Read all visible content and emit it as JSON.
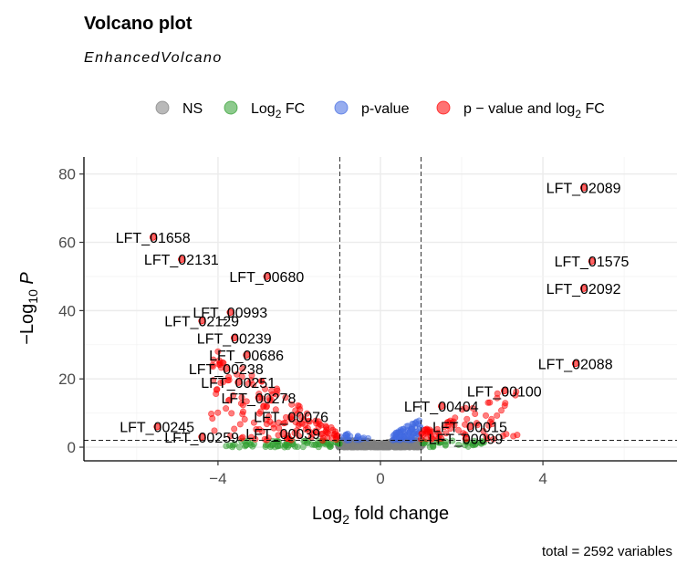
{
  "chart_data": {
    "type": "scatter",
    "title": "Volcano plot",
    "subtitle": "EnhancedVolcano",
    "caption": "total = 2592 variables",
    "xlabel": {
      "prefix": "Log",
      "sub": "2",
      "suffix": " fold change"
    },
    "ylabel": {
      "prefix": "−Log",
      "sub": "10",
      "suffix": " P"
    },
    "xlim": [
      -7.3,
      7.3
    ],
    "ylim": [
      -4,
      85
    ],
    "xticks": [
      -4,
      0,
      4
    ],
    "yticks": [
      0,
      20,
      40,
      60,
      80
    ],
    "grid": true,
    "fc_cutoff": 1,
    "p_cutoff_neglog10": 2,
    "legend": {
      "position": "top",
      "entries": [
        {
          "key": "NS",
          "label": "NS",
          "color": "#7f7f7f"
        },
        {
          "key": "FC",
          "label_prefix": "Log",
          "label_sub": "2",
          "label_suffix": " FC",
          "color": "#2f9e2f"
        },
        {
          "key": "P",
          "label": "p-value",
          "color": "#4169e1"
        },
        {
          "key": "PFC",
          "label_prefix": "p − value and log",
          "label_sub": "2",
          "label_suffix": " FC",
          "color": "#ff0000"
        }
      ]
    },
    "labeled_points": [
      {
        "label": "LFT_02089",
        "x": 5.0,
        "y": 76
      },
      {
        "label": "LFT_01658",
        "x": -5.6,
        "y": 61.5
      },
      {
        "label": "LFT_02131",
        "x": -4.9,
        "y": 55
      },
      {
        "label": "LFT_01575",
        "x": 5.2,
        "y": 54.5
      },
      {
        "label": "LFT_00680",
        "x": -2.8,
        "y": 50
      },
      {
        "label": "LFT_02092",
        "x": 5.0,
        "y": 46.5
      },
      {
        "label": "LFT_00993",
        "x": -3.7,
        "y": 39.5
      },
      {
        "label": "LFT_02129",
        "x": -4.4,
        "y": 37
      },
      {
        "label": "LFT_00239",
        "x": -3.6,
        "y": 32
      },
      {
        "label": "LFT_00686",
        "x": -3.3,
        "y": 27
      },
      {
        "label": "LFT_02088",
        "x": 4.8,
        "y": 24.5
      },
      {
        "label": "LFT_00238",
        "x": -3.8,
        "y": 23
      },
      {
        "label": "LFT_00251",
        "x": -3.5,
        "y": 19
      },
      {
        "label": "LFT_00100",
        "x": 3.05,
        "y": 16.5
      },
      {
        "label": "LFT_00278",
        "x": -3.0,
        "y": 14.5
      },
      {
        "label": "LFT_00404",
        "x": 1.5,
        "y": 12
      },
      {
        "label": "LFT_00245",
        "x": -5.5,
        "y": 6
      },
      {
        "label": "LFT_00076",
        "x": -2.2,
        "y": 9
      },
      {
        "label": "LFT_00015",
        "x": 2.2,
        "y": 6
      },
      {
        "label": "LFT_00039",
        "x": -2.4,
        "y": 4
      },
      {
        "label": "LFT_00259",
        "x": -4.4,
        "y": 3
      },
      {
        "label": "LFT_00099",
        "x": 2.1,
        "y": 2.5
      }
    ]
  }
}
